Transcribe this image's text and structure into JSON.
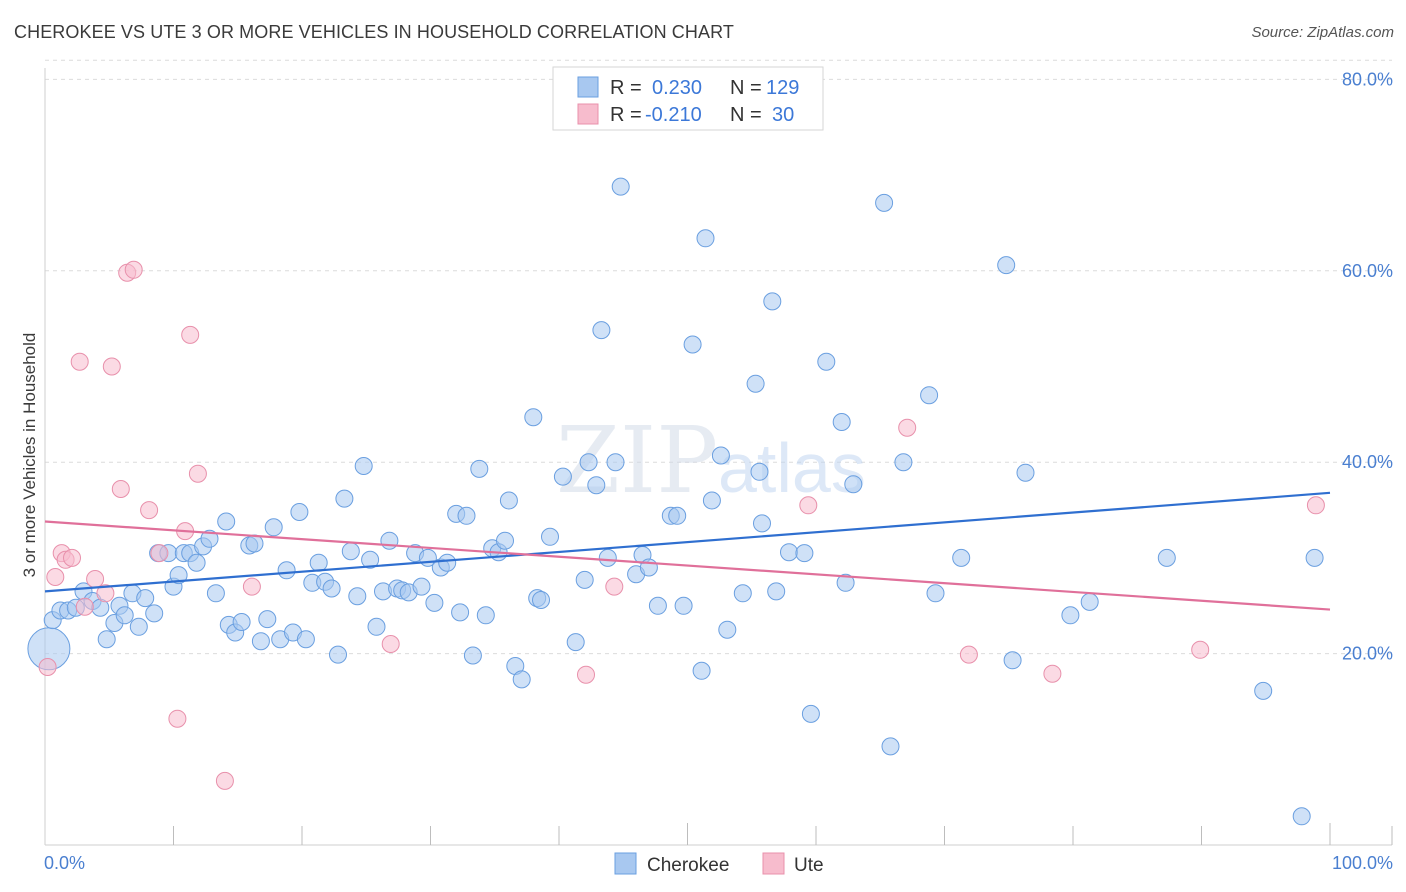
{
  "header": {
    "title": "CHEROKEE VS UTE 3 OR MORE VEHICLES IN HOUSEHOLD CORRELATION CHART",
    "source": "Source: ZipAtlas.com"
  },
  "watermark": {
    "zip": "ZIP",
    "atlas": "atlas"
  },
  "legend": {
    "rows": [
      {
        "r_label": "R =",
        "r_value": "0.230",
        "n_label": "N =",
        "n_value": "129"
      },
      {
        "r_label": "R =",
        "r_value": "-0.210",
        "n_label": "N =",
        "n_value": "30"
      }
    ]
  },
  "bottom_legend": {
    "items": [
      "Cherokee",
      "Ute"
    ]
  },
  "colors": {
    "cherokee_fill": "#a8c8f0",
    "cherokee_stroke": "#6a9fe0",
    "cherokee_line": "#2f6fd0",
    "ute_fill": "#f7bccd",
    "ute_stroke": "#e890ab",
    "ute_line": "#e0709a",
    "accent_text": "#3c78d8"
  },
  "chart_data": {
    "type": "scatter",
    "title": "CHEROKEE VS UTE 3 OR MORE VEHICLES IN HOUSEHOLD CORRELATION CHART",
    "xlabel": "",
    "ylabel": "3 or more Vehicles in Household",
    "xlim": [
      0,
      100
    ],
    "ylim": [
      0,
      84
    ],
    "x_ticks": [
      "0.0%",
      "100.0%"
    ],
    "y_ticks": [
      {
        "value": 20,
        "label": "20.0%"
      },
      {
        "value": 40,
        "label": "40.0%"
      },
      {
        "value": 60,
        "label": "60.0%"
      },
      {
        "value": 80,
        "label": "80.0%"
      }
    ],
    "grid": true,
    "legend_position": "top-center",
    "series": [
      {
        "name": "Cherokee",
        "r": 0.23,
        "n": 129,
        "trend": {
          "x": [
            0,
            100
          ],
          "y": [
            26.5,
            36.8
          ]
        },
        "points": [
          [
            0.3,
            20.5
          ],
          [
            0.6,
            23.5
          ],
          [
            1.2,
            24.5
          ],
          [
            1.8,
            24.5
          ],
          [
            2.4,
            24.8
          ],
          [
            3.0,
            26.5
          ],
          [
            3.7,
            25.5
          ],
          [
            4.3,
            24.8
          ],
          [
            4.8,
            21.5
          ],
          [
            5.4,
            23.2
          ],
          [
            5.8,
            25.0
          ],
          [
            6.2,
            24.0
          ],
          [
            6.8,
            26.3
          ],
          [
            7.3,
            22.8
          ],
          [
            7.8,
            25.8
          ],
          [
            8.5,
            24.2
          ],
          [
            8.8,
            30.5
          ],
          [
            9.6,
            30.5
          ],
          [
            10.0,
            27.0
          ],
          [
            10.4,
            28.2
          ],
          [
            10.8,
            30.5
          ],
          [
            11.3,
            30.5
          ],
          [
            11.8,
            29.5
          ],
          [
            12.3,
            31.2
          ],
          [
            12.8,
            32.0
          ],
          [
            13.3,
            26.3
          ],
          [
            14.1,
            33.8
          ],
          [
            14.3,
            23.0
          ],
          [
            14.8,
            22.2
          ],
          [
            15.3,
            23.3
          ],
          [
            15.9,
            31.3
          ],
          [
            16.3,
            31.5
          ],
          [
            16.8,
            21.3
          ],
          [
            17.3,
            23.6
          ],
          [
            17.8,
            33.2
          ],
          [
            18.3,
            21.5
          ],
          [
            18.8,
            28.7
          ],
          [
            19.3,
            22.2
          ],
          [
            19.8,
            34.8
          ],
          [
            20.3,
            21.5
          ],
          [
            20.8,
            27.4
          ],
          [
            21.3,
            29.5
          ],
          [
            21.8,
            27.5
          ],
          [
            22.3,
            26.8
          ],
          [
            22.8,
            19.9
          ],
          [
            23.3,
            36.2
          ],
          [
            23.8,
            30.7
          ],
          [
            24.3,
            26.0
          ],
          [
            24.8,
            39.6
          ],
          [
            25.3,
            29.8
          ],
          [
            25.8,
            22.8
          ],
          [
            26.3,
            26.5
          ],
          [
            26.8,
            31.8
          ],
          [
            27.4,
            26.8
          ],
          [
            27.8,
            26.6
          ],
          [
            28.3,
            26.4
          ],
          [
            28.8,
            30.5
          ],
          [
            29.3,
            27.0
          ],
          [
            29.8,
            30.0
          ],
          [
            30.3,
            25.3
          ],
          [
            30.8,
            29.0
          ],
          [
            31.3,
            29.5
          ],
          [
            32.0,
            34.6
          ],
          [
            32.3,
            24.3
          ],
          [
            32.8,
            34.4
          ],
          [
            33.3,
            19.8
          ],
          [
            33.8,
            39.3
          ],
          [
            34.3,
            24.0
          ],
          [
            34.8,
            31.0
          ],
          [
            35.3,
            30.6
          ],
          [
            35.8,
            31.8
          ],
          [
            36.1,
            36.0
          ],
          [
            36.6,
            18.7
          ],
          [
            37.1,
            17.3
          ],
          [
            38.0,
            44.7
          ],
          [
            38.3,
            25.8
          ],
          [
            38.6,
            25.6
          ],
          [
            39.3,
            32.2
          ],
          [
            40.3,
            38.5
          ],
          [
            41.3,
            21.2
          ],
          [
            42.0,
            27.7
          ],
          [
            42.3,
            40.0
          ],
          [
            42.9,
            37.6
          ],
          [
            43.3,
            53.8
          ],
          [
            43.8,
            30.0
          ],
          [
            44.4,
            40.0
          ],
          [
            44.8,
            68.8
          ],
          [
            46.0,
            28.3
          ],
          [
            46.5,
            30.3
          ],
          [
            47.0,
            29.0
          ],
          [
            47.7,
            25.0
          ],
          [
            48.7,
            34.4
          ],
          [
            49.2,
            34.4
          ],
          [
            49.7,
            25.0
          ],
          [
            50.4,
            52.3
          ],
          [
            51.1,
            18.2
          ],
          [
            51.4,
            63.4
          ],
          [
            51.9,
            36.0
          ],
          [
            52.6,
            40.7
          ],
          [
            53.1,
            22.5
          ],
          [
            54.3,
            26.3
          ],
          [
            55.3,
            48.2
          ],
          [
            55.6,
            39.0
          ],
          [
            55.8,
            33.6
          ],
          [
            56.6,
            56.8
          ],
          [
            56.9,
            26.5
          ],
          [
            57.9,
            30.6
          ],
          [
            59.1,
            30.5
          ],
          [
            59.6,
            13.7
          ],
          [
            60.8,
            50.5
          ],
          [
            62.0,
            44.2
          ],
          [
            62.3,
            27.4
          ],
          [
            62.9,
            37.7
          ],
          [
            65.3,
            67.1
          ],
          [
            65.8,
            10.3
          ],
          [
            66.8,
            40.0
          ],
          [
            68.8,
            47.0
          ],
          [
            69.3,
            26.3
          ],
          [
            71.3,
            30.0
          ],
          [
            74.8,
            60.6
          ],
          [
            75.3,
            19.3
          ],
          [
            76.3,
            38.9
          ],
          [
            79.8,
            24.0
          ],
          [
            81.3,
            25.4
          ],
          [
            87.3,
            30.0
          ],
          [
            94.8,
            16.1
          ],
          [
            97.8,
            3.0
          ],
          [
            98.8,
            30.0
          ]
        ]
      },
      {
        "name": "Ute",
        "r": -0.21,
        "n": 30,
        "trend": {
          "x": [
            0,
            100
          ],
          "y": [
            33.8,
            24.6
          ]
        },
        "points": [
          [
            0.2,
            18.6
          ],
          [
            0.8,
            28.0
          ],
          [
            1.3,
            30.5
          ],
          [
            1.6,
            29.8
          ],
          [
            2.1,
            30.0
          ],
          [
            2.7,
            50.5
          ],
          [
            3.1,
            24.9
          ],
          [
            3.9,
            27.8
          ],
          [
            4.7,
            26.3
          ],
          [
            5.2,
            50.0
          ],
          [
            5.9,
            37.2
          ],
          [
            6.4,
            59.8
          ],
          [
            6.9,
            60.1
          ],
          [
            8.1,
            35.0
          ],
          [
            8.9,
            30.5
          ],
          [
            10.3,
            13.2
          ],
          [
            10.9,
            32.8
          ],
          [
            11.3,
            53.3
          ],
          [
            11.9,
            38.8
          ],
          [
            14.0,
            6.7
          ],
          [
            16.1,
            27.0
          ],
          [
            26.9,
            21.0
          ],
          [
            42.1,
            17.8
          ],
          [
            44.3,
            27.0
          ],
          [
            59.4,
            35.5
          ],
          [
            67.1,
            43.6
          ],
          [
            71.9,
            19.9
          ],
          [
            78.4,
            17.9
          ],
          [
            89.9,
            20.4
          ],
          [
            98.9,
            35.5
          ]
        ]
      }
    ]
  }
}
